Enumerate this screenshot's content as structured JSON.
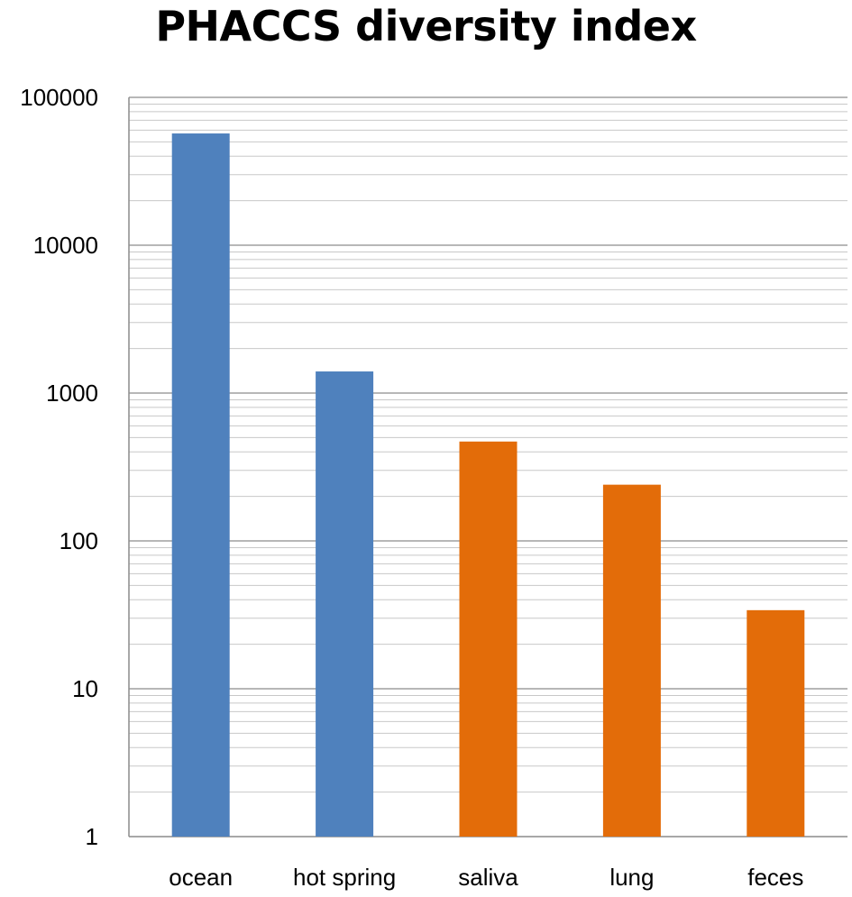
{
  "chart_data": {
    "type": "bar",
    "title": "PHACCS diversity index",
    "categories": [
      "ocean",
      "hot spring",
      "saliva",
      "lung",
      "feces"
    ],
    "values": [
      57000,
      1400,
      470,
      240,
      34
    ],
    "bar_colors": [
      "#4F81BD",
      "#4F81BD",
      "#E36C09",
      "#E36C09",
      "#E36C09"
    ],
    "yscale": "log",
    "ylim": [
      1,
      100000
    ],
    "yticks": [
      "1",
      "10",
      "100",
      "1000",
      "10000",
      "100000"
    ],
    "grid": "major and minor horizontal",
    "xlabel": "",
    "ylabel": ""
  }
}
